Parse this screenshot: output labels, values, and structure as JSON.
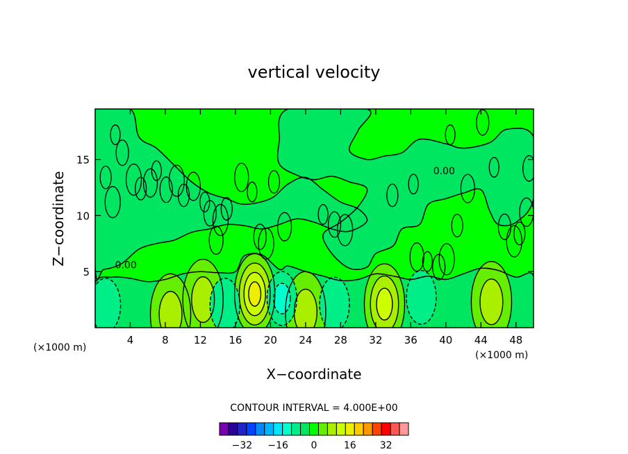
{
  "chart_data": {
    "type": "contour",
    "title": "vertical velocity",
    "xlabel": "X−coordinate",
    "ylabel": "Z−coordinate",
    "x_units": "(×1000 m)",
    "y_units": "(×1000 m)",
    "xlim": [
      0,
      50
    ],
    "ylim": [
      0,
      19.5
    ],
    "x_ticks": [
      4,
      8,
      12,
      16,
      20,
      24,
      28,
      32,
      36,
      40,
      44,
      48
    ],
    "y_ticks": [
      5,
      10,
      15
    ],
    "x_tick_labels": [
      "4",
      "8",
      "12",
      "16",
      "20",
      "24",
      "28",
      "32",
      "36",
      "40",
      "44",
      "48"
    ],
    "y_tick_labels": [
      "5",
      "10",
      "15"
    ],
    "contour_interval_text": "CONTOUR INTERVAL = 4.000E+00",
    "contour_interval": 4.0,
    "contour_labels": [
      {
        "text": "0.00",
        "x": 3.5,
        "z": 5.6
      },
      {
        "text": "0.00",
        "x": 39.8,
        "z": 14.0
      }
    ],
    "features": [
      {
        "kind": "updraft",
        "x": 18.2,
        "z": 3.0,
        "peak": 16
      },
      {
        "kind": "updraft",
        "x": 33.0,
        "z": 2.1,
        "peak": 12
      },
      {
        "kind": "updraft",
        "x": 45.2,
        "z": 2.3,
        "peak": 8
      },
      {
        "kind": "updraft",
        "x": 12.3,
        "z": 2.5,
        "peak": 8
      },
      {
        "kind": "updraft",
        "x": 24.0,
        "z": 1.4,
        "peak": 8
      },
      {
        "kind": "updraft",
        "x": 8.6,
        "z": 1.2,
        "peak": 8
      },
      {
        "kind": "downdraft",
        "x": 1.2,
        "z": 2.0,
        "peak": -4
      },
      {
        "kind": "downdraft",
        "x": 21.3,
        "z": 2.6,
        "peak": -8
      },
      {
        "kind": "downdraft",
        "x": 27.3,
        "z": 2.1,
        "peak": -4
      },
      {
        "kind": "downdraft",
        "x": 37.2,
        "z": 2.7,
        "peak": -4
      },
      {
        "kind": "downdraft",
        "x": 14.8,
        "z": 2.0,
        "peak": -4
      }
    ],
    "colorbar": {
      "levels": [
        -40,
        -36,
        -32,
        -28,
        -24,
        -20,
        -16,
        -12,
        -8,
        -4,
        0,
        4,
        8,
        12,
        16,
        20,
        24,
        28,
        32,
        36,
        40
      ],
      "colors": [
        "#7a00b4",
        "#2a0096",
        "#2222cc",
        "#0044ff",
        "#0088ff",
        "#00b4ff",
        "#00e6ff",
        "#00ffcc",
        "#00ee88",
        "#00e660",
        "#00ff00",
        "#66ee00",
        "#aaee00",
        "#ccff00",
        "#eeee00",
        "#ffcc00",
        "#ff9900",
        "#ff4400",
        "#ff0000",
        "#ff5555",
        "#ff9999"
      ],
      "tick_labels": [
        "−32",
        "−16",
        "0",
        "16",
        "32"
      ],
      "tick_values": [
        -32,
        -16,
        0,
        16,
        32
      ]
    }
  }
}
